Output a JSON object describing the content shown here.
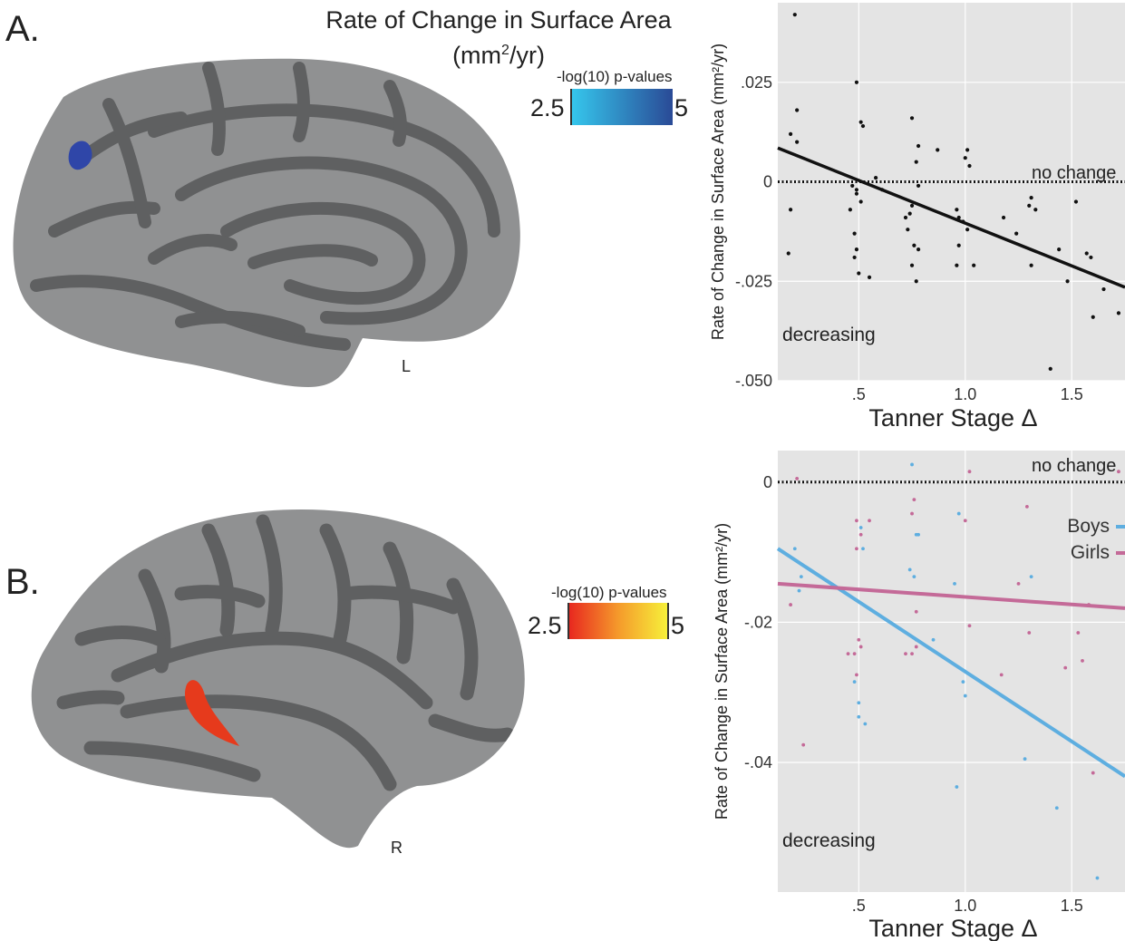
{
  "panel_a": {
    "letter": "A.",
    "title_line1": "Rate of Change in Surface Area",
    "title_line2_pre": "(mm",
    "title_line2_sup": "2",
    "title_line2_post": "/yr)",
    "hemisphere": "L",
    "colorbar": {
      "label": "-log(10) p-values",
      "min": "2.5",
      "max": "5",
      "colors": [
        "#35c6ec",
        "#2a4a96"
      ]
    },
    "highlight_color": "#2f46a8"
  },
  "panel_b": {
    "letter": "B.",
    "hemisphere": "R",
    "colorbar": {
      "label": "-log(10) p-values",
      "min": "2.5",
      "max": "5",
      "colors": [
        "#e8281f",
        "#f59a2b",
        "#f6f03a"
      ]
    },
    "highlight_color": "#e63a1c"
  },
  "colors": {
    "plot_bg": "#e4e4e4",
    "grid": "#ffffff",
    "brain_dark": "#5f6061",
    "brain_light": "#909192",
    "boys": "#5eaee0",
    "girls": "#c46a98"
  },
  "chart_data": [
    {
      "type": "scatter",
      "title": "",
      "xlabel": "Tanner Stage Δ",
      "ylabel": "Rate of Change in Surface Area  (mm²/yr)",
      "xlim": [
        0.12,
        1.75
      ],
      "ylim": [
        -0.05,
        0.045
      ],
      "x_ticks": [
        0.5,
        1.0,
        1.5
      ],
      "x_tick_labels": [
        ".5",
        "1.0",
        "1.5"
      ],
      "y_ticks": [
        -0.05,
        -0.025,
        0,
        0.025
      ],
      "y_tick_labels": [
        "-.050",
        "-.025",
        "0",
        ".025"
      ],
      "grid": true,
      "annotations": {
        "reference": "no change",
        "region": "decreasing"
      },
      "reference_line": {
        "y": 0,
        "style": "dotted"
      },
      "series": [
        {
          "points": [
            [
              0.2,
              0.042
            ],
            [
              0.18,
              0.012
            ],
            [
              0.21,
              0.018
            ],
            [
              0.21,
              0.01
            ],
            [
              0.18,
              -0.007
            ],
            [
              0.17,
              -0.018
            ],
            [
              0.49,
              0.025
            ],
            [
              0.51,
              0.015
            ],
            [
              0.52,
              0.014
            ],
            [
              0.47,
              -0.001
            ],
            [
              0.49,
              -0.002
            ],
            [
              0.49,
              -0.003
            ],
            [
              0.51,
              -0.005
            ],
            [
              0.46,
              -0.007
            ],
            [
              0.48,
              -0.013
            ],
            [
              0.48,
              -0.019
            ],
            [
              0.49,
              -0.017
            ],
            [
              0.5,
              -0.023
            ],
            [
              0.55,
              -0.024
            ],
            [
              0.58,
              0.001
            ],
            [
              0.61,
              -0.002
            ],
            [
              0.75,
              0.016
            ],
            [
              0.77,
              0.005
            ],
            [
              0.78,
              0.009
            ],
            [
              0.78,
              -0.001
            ],
            [
              0.75,
              -0.006
            ],
            [
              0.74,
              -0.008
            ],
            [
              0.72,
              -0.009
            ],
            [
              0.73,
              -0.012
            ],
            [
              0.76,
              -0.016
            ],
            [
              0.78,
              -0.017
            ],
            [
              0.75,
              -0.021
            ],
            [
              0.77,
              -0.025
            ],
            [
              0.87,
              0.008
            ],
            [
              1.01,
              0.008
            ],
            [
              1.0,
              0.006
            ],
            [
              1.02,
              0.004
            ],
            [
              0.96,
              -0.007
            ],
            [
              0.97,
              -0.009
            ],
            [
              0.99,
              -0.01
            ],
            [
              1.01,
              -0.012
            ],
            [
              0.97,
              -0.016
            ],
            [
              0.96,
              -0.021
            ],
            [
              1.04,
              -0.021
            ],
            [
              1.18,
              -0.009
            ],
            [
              1.24,
              -0.013
            ],
            [
              1.31,
              -0.004
            ],
            [
              1.3,
              -0.006
            ],
            [
              1.33,
              -0.007
            ],
            [
              1.31,
              -0.021
            ],
            [
              1.4,
              -0.047
            ],
            [
              1.44,
              -0.017
            ],
            [
              1.48,
              -0.025
            ],
            [
              1.52,
              -0.005
            ],
            [
              1.57,
              -0.018
            ],
            [
              1.59,
              -0.019
            ],
            [
              1.6,
              -0.034
            ],
            [
              1.65,
              -0.027
            ],
            [
              1.72,
              -0.033
            ]
          ],
          "color": "#111111"
        }
      ],
      "fit_lines": [
        {
          "x": [
            0.12,
            1.75
          ],
          "y": [
            0.0085,
            -0.0265
          ],
          "color": "#111111"
        }
      ]
    },
    {
      "type": "scatter",
      "title": "",
      "xlabel": "Tanner Stage Δ",
      "ylabel": "Rate of Change in Surface Area (mm²/yr)",
      "xlim": [
        0.12,
        1.75
      ],
      "ylim": [
        -0.0585,
        0.0045
      ],
      "x_ticks": [
        0.5,
        1.0,
        1.5
      ],
      "x_tick_labels": [
        ".5",
        "1.0",
        "1.5"
      ],
      "y_ticks": [
        -0.04,
        -0.02,
        0
      ],
      "y_tick_labels": [
        "-.04",
        "-.02",
        "0"
      ],
      "grid": true,
      "legend_position": "right",
      "annotations": {
        "reference": "no change",
        "region": "decreasing"
      },
      "reference_line": {
        "y": 0,
        "style": "dotted"
      },
      "series": [
        {
          "name": "Boys",
          "color": "#5eaee0",
          "points": [
            [
              0.2,
              -0.0095
            ],
            [
              0.22,
              -0.0155
            ],
            [
              0.23,
              -0.0135
            ],
            [
              0.51,
              -0.0065
            ],
            [
              0.52,
              -0.0095
            ],
            [
              0.5,
              -0.0315
            ],
            [
              0.5,
              -0.0335
            ],
            [
              0.53,
              -0.0345
            ],
            [
              0.48,
              -0.0285
            ],
            [
              0.75,
              0.0025
            ],
            [
              0.77,
              -0.0075
            ],
            [
              0.78,
              -0.0075
            ],
            [
              0.76,
              -0.0135
            ],
            [
              0.74,
              -0.0125
            ],
            [
              0.77,
              -0.0225
            ],
            [
              0.85,
              -0.0225
            ],
            [
              0.97,
              -0.0045
            ],
            [
              0.95,
              -0.0145
            ],
            [
              0.96,
              -0.0435
            ],
            [
              0.99,
              -0.0285
            ],
            [
              1.0,
              -0.0305
            ],
            [
              1.28,
              -0.0395
            ],
            [
              1.31,
              -0.0135
            ],
            [
              1.43,
              -0.0465
            ],
            [
              1.62,
              -0.0565
            ]
          ]
        },
        {
          "name": "Girls",
          "color": "#c46a98",
          "points": [
            [
              0.21,
              0.0005
            ],
            [
              0.24,
              -0.0375
            ],
            [
              0.18,
              -0.0175
            ],
            [
              0.49,
              -0.0055
            ],
            [
              0.51,
              -0.0075
            ],
            [
              0.49,
              -0.0095
            ],
            [
              0.55,
              -0.0055
            ],
            [
              0.48,
              -0.0245
            ],
            [
              0.49,
              -0.0275
            ],
            [
              0.5,
              -0.0225
            ],
            [
              0.51,
              -0.0235
            ],
            [
              0.45,
              -0.0245
            ],
            [
              0.72,
              -0.0245
            ],
            [
              0.75,
              -0.0245
            ],
            [
              0.77,
              -0.0235
            ],
            [
              0.76,
              -0.0025
            ],
            [
              0.75,
              -0.0045
            ],
            [
              0.77,
              -0.0185
            ],
            [
              1.02,
              0.0015
            ],
            [
              1.0,
              -0.0055
            ],
            [
              1.02,
              -0.0205
            ],
            [
              1.17,
              -0.0275
            ],
            [
              1.25,
              -0.0145
            ],
            [
              1.29,
              -0.0035
            ],
            [
              1.3,
              -0.0215
            ],
            [
              1.47,
              -0.0265
            ],
            [
              1.53,
              -0.0215
            ],
            [
              1.58,
              -0.0175
            ],
            [
              1.55,
              -0.0255
            ],
            [
              1.6,
              -0.0415
            ],
            [
              1.72,
              0.0015
            ]
          ]
        }
      ],
      "fit_lines": [
        {
          "name": "Boys",
          "x": [
            0.12,
            1.75
          ],
          "y": [
            -0.0095,
            -0.042
          ],
          "color": "#5eaee0"
        },
        {
          "name": "Girls",
          "x": [
            0.12,
            1.75
          ],
          "y": [
            -0.0145,
            -0.018
          ],
          "color": "#c46a98"
        }
      ]
    }
  ]
}
